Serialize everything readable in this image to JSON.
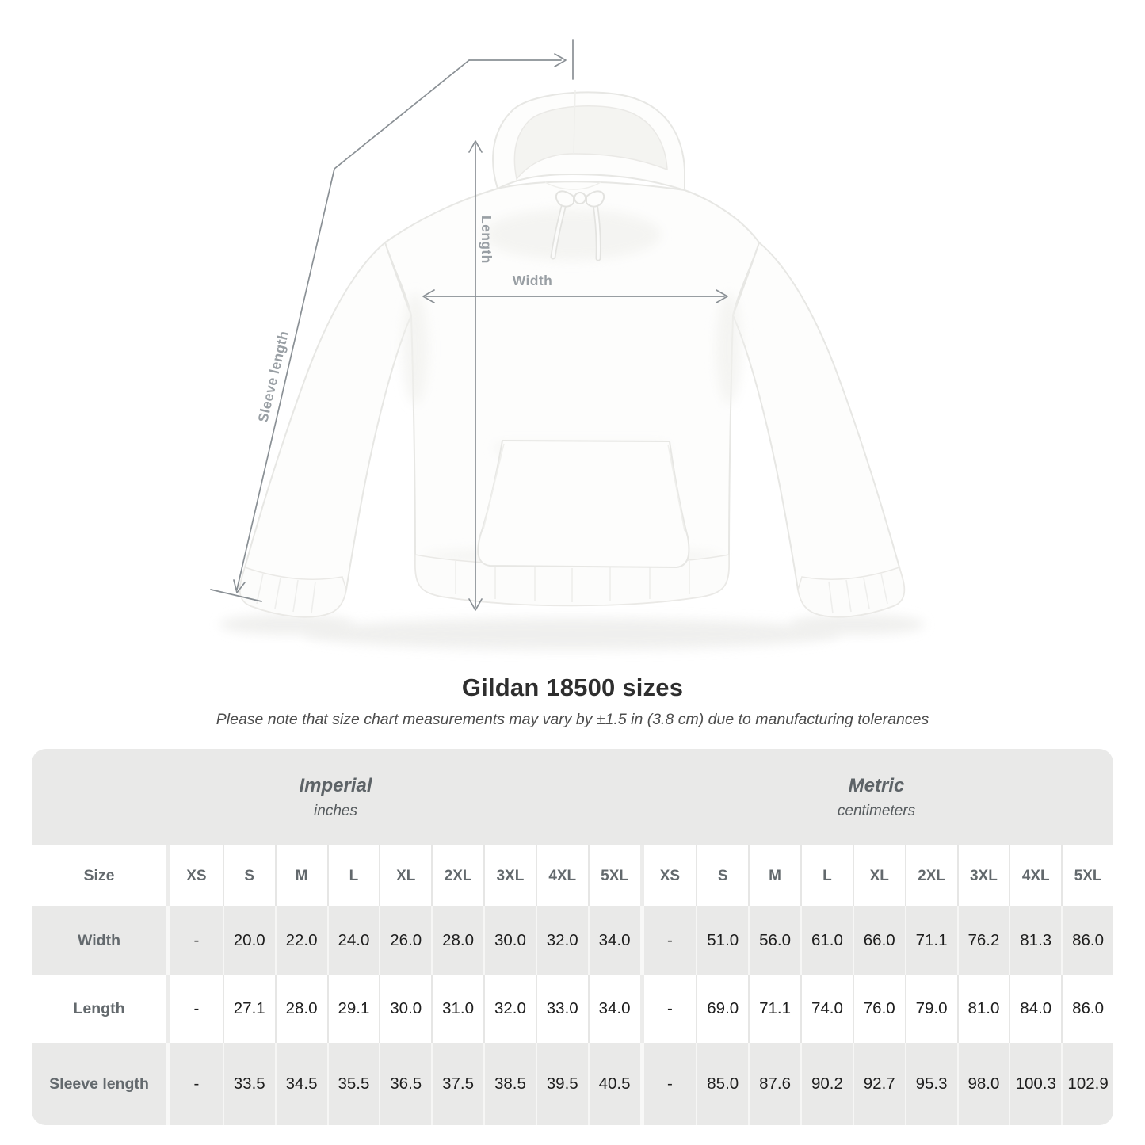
{
  "page": {
    "title": "Gildan 18500 sizes",
    "subtitle": "Please note that size chart measurements may vary by ±1.5 in (3.8 cm) due to manufacturing tolerances"
  },
  "diagram": {
    "length_label": "Length",
    "width_label": "Width",
    "sleeve_label": "Sleeve length"
  },
  "chart_data": {
    "type": "table",
    "title": "Gildan 18500 sizes",
    "corner_header": "Size",
    "groups": [
      {
        "label": "Imperial",
        "unit": "inches"
      },
      {
        "label": "Metric",
        "unit": "centimeters"
      }
    ],
    "sizes": [
      "XS",
      "S",
      "M",
      "L",
      "XL",
      "2XL",
      "3XL",
      "4XL",
      "5XL"
    ],
    "rows": [
      {
        "label": "Width",
        "imperial": [
          "-",
          "20.0",
          "22.0",
          "24.0",
          "26.0",
          "28.0",
          "30.0",
          "32.0",
          "34.0"
        ],
        "metric": [
          "-",
          "51.0",
          "56.0",
          "61.0",
          "66.0",
          "71.1",
          "76.2",
          "81.3",
          "86.0"
        ]
      },
      {
        "label": "Length",
        "imperial": [
          "-",
          "27.1",
          "28.0",
          "29.1",
          "30.0",
          "31.0",
          "32.0",
          "33.0",
          "34.0"
        ],
        "metric": [
          "-",
          "69.0",
          "71.1",
          "74.0",
          "76.0",
          "79.0",
          "81.0",
          "84.0",
          "86.0"
        ]
      },
      {
        "label": "Sleeve length",
        "imperial": [
          "-",
          "33.5",
          "34.5",
          "35.5",
          "36.5",
          "37.5",
          "38.5",
          "39.5",
          "40.5"
        ],
        "metric": [
          "-",
          "85.0",
          "87.6",
          "90.2",
          "92.7",
          "95.3",
          "98.0",
          "100.3",
          "102.9"
        ]
      }
    ]
  },
  "colors": {
    "annotation_line": "#8a9095",
    "annotation_label": "#999fa4",
    "row_gray": "#e9e9e8",
    "header_text": "#63696d",
    "value_text": "#1e1e1e"
  }
}
